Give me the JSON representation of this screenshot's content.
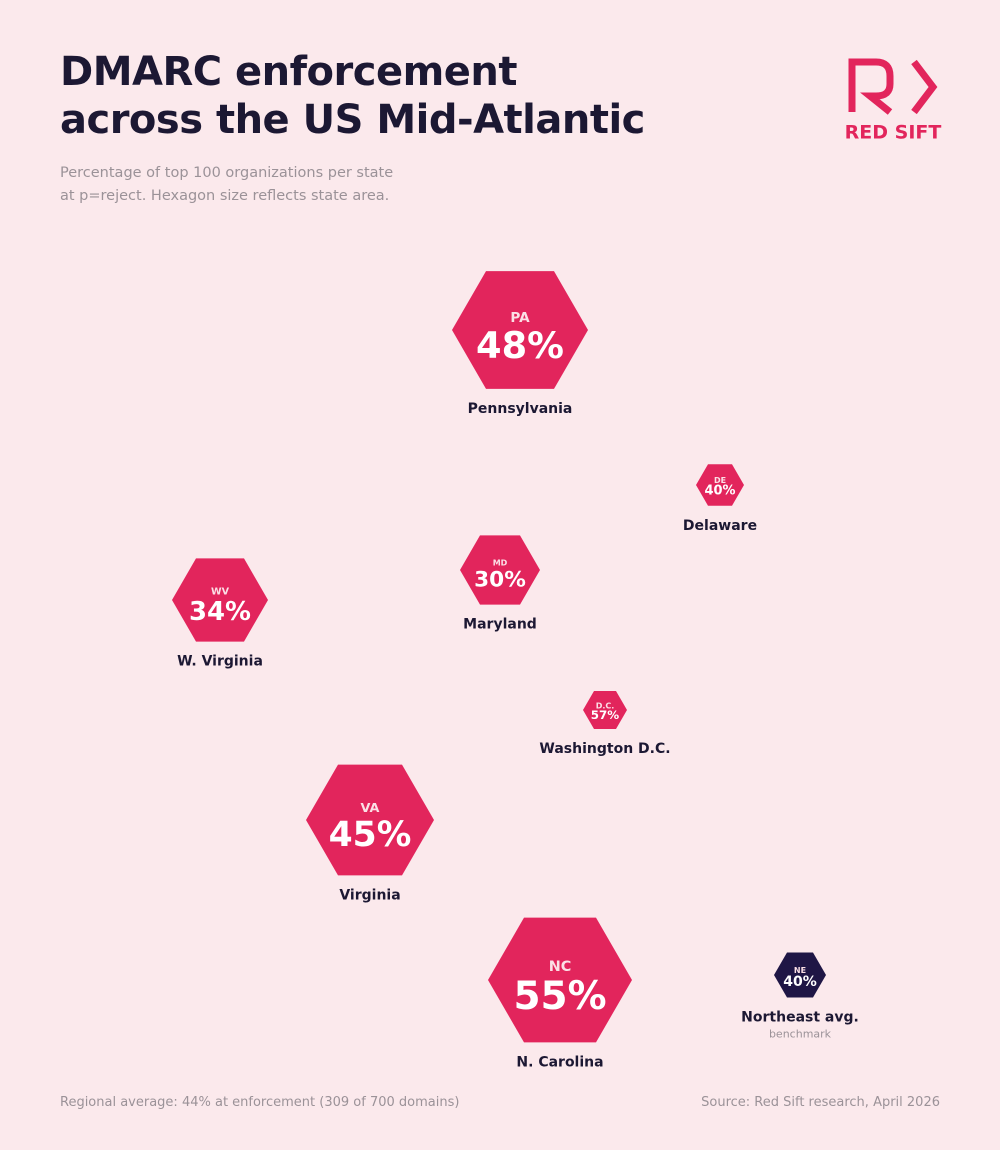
{
  "chart_data": {
    "type": "hexagon",
    "title": "DMARC enforcement across the US Mid-Atlantic",
    "subtitle": "Percentage of top 100 organizations per state at p=reject. Hexagon size reflects state area.",
    "brand": "RED SIFT",
    "color": "#e2255c",
    "codes": [
      "PA",
      "DE",
      "MD",
      "WV",
      "D.C.",
      "VA",
      "NC"
    ],
    "categories": [
      "Pennsylvania",
      "Delaware",
      "Maryland",
      "W. Virginia",
      "Washington D.C.",
      "Virginia",
      "N. Carolina"
    ],
    "values": [
      48,
      40,
      30,
      34,
      57,
      45,
      55
    ],
    "value_labels": [
      "48%",
      "40%",
      "30%",
      "34%",
      "57%",
      "45%",
      "55%"
    ],
    "benchmark": {
      "code": "NE",
      "name": "Northeast avg.",
      "note": "benchmark",
      "value": 40,
      "value_label": "40%",
      "color": "#1f1645"
    },
    "footnote": "Regional average: 44% at enforcement (309 of 700 domains)",
    "source": "Source: Red Sift research, April 2026"
  }
}
